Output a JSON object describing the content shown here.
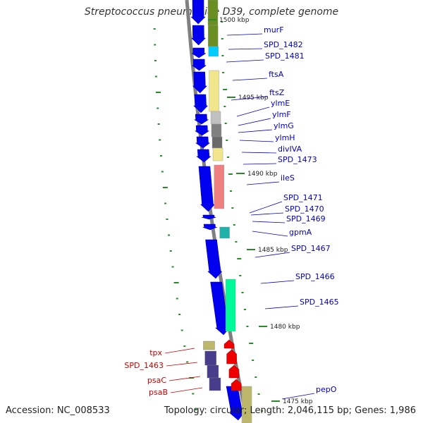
{
  "title": "Streptococcus pneumoniae D39, complete genome",
  "accession": "Accession: NC_008533",
  "topology": "Topology: circular; Length: 2,046,115 bp; Genes: 1,986",
  "colors": {
    "forward_gene": "#0000ee",
    "reverse_gene": "#ee0000",
    "backbone": "#808080",
    "forward_label": "#0000cc",
    "reverse_label": "#cc0000",
    "gc_tick": "#2a8a2a"
  },
  "positions": [
    {
      "label": "1500 kbp"
    },
    {
      "label": "1495 kbp"
    },
    {
      "label": "1490 kbp"
    },
    {
      "label": "1485 kbp"
    },
    {
      "label": "1480 kbp"
    },
    {
      "label": "1475 kbp"
    }
  ],
  "forward_genes": [
    {
      "label": "murF",
      "color": "#6b8e23"
    },
    {
      "label": "SPD_1482",
      "color": "#00ccff"
    },
    {
      "label": "SPD_1481",
      "color": "#ffffff"
    },
    {
      "label": "ftsA",
      "color": "#f0e68c"
    },
    {
      "label": "ftsZ",
      "color": "#f0e68c"
    },
    {
      "label": "ylmE",
      "color": "#c0c0c0"
    },
    {
      "label": "ylmF",
      "color": "#808080"
    },
    {
      "label": "ylmG",
      "color": "#696969"
    },
    {
      "label": "ylmH",
      "color": "#555555"
    },
    {
      "label": "divIVA",
      "color": "#f0e68c"
    },
    {
      "label": "SPD_1473",
      "color": "#f0e68c"
    },
    {
      "label": "ileS",
      "color": "#f08080"
    },
    {
      "label": "SPD_1471",
      "color": "#ffffff"
    },
    {
      "label": "SPD_1470",
      "color": "#ffffff"
    },
    {
      "label": "SPD_1469",
      "color": "#ffffff"
    },
    {
      "label": "gpmA",
      "color": "#20b2aa"
    },
    {
      "label": "SPD_1467",
      "color": "#ffffff"
    },
    {
      "label": "SPD_1466",
      "color": "#ffffff"
    },
    {
      "label": "SPD_1465",
      "color": "#00fa9a"
    },
    {
      "label": "pepO",
      "color": "#bdb76b"
    }
  ],
  "reverse_genes": [
    {
      "label": "tpx",
      "color": "#bdb76b"
    },
    {
      "label": "SPD_1463",
      "color": "#483d8b"
    },
    {
      "label": "psaC",
      "color": "#483d8b"
    },
    {
      "label": "psaB",
      "color": "#483d8b"
    }
  ]
}
